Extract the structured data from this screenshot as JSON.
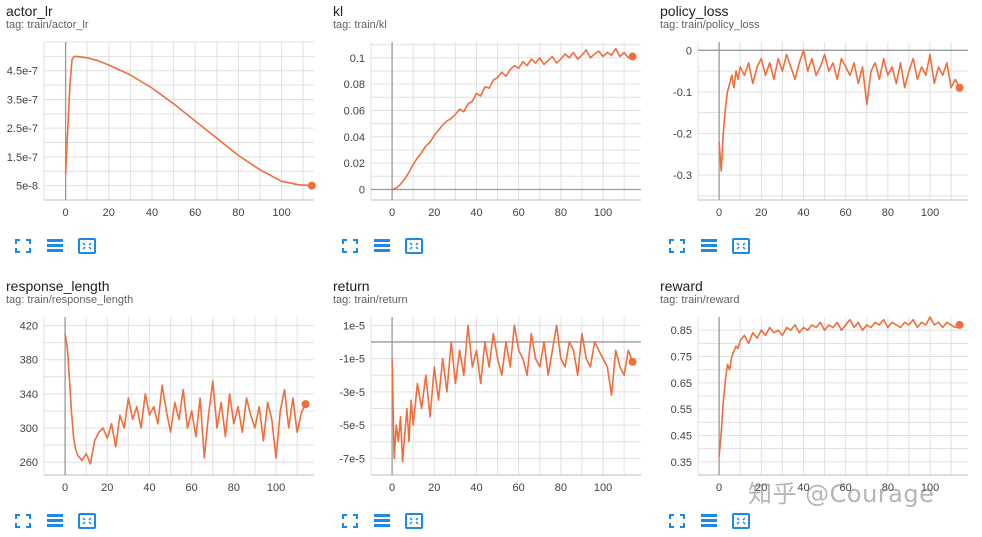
{
  "colors": {
    "series": "#f06d3c",
    "grid": "#e0e0e0",
    "axis": "#9e9e9e",
    "zero_line": "#9a9a9a",
    "icon": "#1e88e5",
    "text": "#212121",
    "tag_text": "#616161"
  },
  "toolbar_icons": [
    "fullscreen-icon",
    "data-table-icon",
    "fit-domain-icon"
  ],
  "watermark": "知乎 @Courage",
  "chart_data": [
    {
      "type": "line",
      "title": "actor_lr",
      "tag": "tag: train/actor_lr",
      "xlim": [
        -10,
        115
      ],
      "ylim": [
        0,
        5.5e-07
      ],
      "xticks": [
        0,
        20,
        40,
        60,
        80,
        100
      ],
      "yticks": [
        5e-08,
        1.5e-07,
        2.5e-07,
        3.5e-07,
        4.5e-07
      ],
      "ytick_labels": [
        "5e-8",
        "1.5e-7",
        "2.5e-7",
        "3.5e-7",
        "4.5e-7"
      ],
      "zero_line_x": true,
      "zero_line_y": false,
      "grid": true,
      "x": [
        0,
        1,
        2,
        3,
        4,
        5,
        10,
        15,
        20,
        30,
        40,
        50,
        60,
        70,
        80,
        90,
        100,
        108,
        114
      ],
      "y": [
        9e-08,
        2.5e-07,
        4e-07,
        4.9e-07,
        5e-07,
        5e-07,
        4.95e-07,
        4.85e-07,
        4.7e-07,
        4.35e-07,
        3.9e-07,
        3.35e-07,
        2.75e-07,
        2.15e-07,
        1.55e-07,
        1.05e-07,
        6.5e-08,
        5.3e-08,
        5e-08
      ]
    },
    {
      "type": "line",
      "title": "kl",
      "tag": "tag: train/kl",
      "xlim": [
        -10,
        118
      ],
      "ylim": [
        -0.008,
        0.112
      ],
      "xticks": [
        0,
        20,
        40,
        60,
        80,
        100
      ],
      "yticks": [
        0,
        0.02,
        0.04,
        0.06,
        0.08,
        0.1
      ],
      "ytick_labels": [
        "0",
        "0.02",
        "0.04",
        "0.06",
        "0.08",
        "0.1"
      ],
      "zero_line_x": true,
      "zero_line_y": true,
      "grid": true,
      "x": [
        0,
        2,
        4,
        6,
        8,
        10,
        12,
        14,
        16,
        18,
        20,
        22,
        24,
        26,
        28,
        30,
        32,
        34,
        36,
        38,
        40,
        42,
        44,
        46,
        48,
        50,
        52,
        54,
        56,
        58,
        60,
        62,
        64,
        66,
        68,
        70,
        72,
        74,
        76,
        78,
        80,
        82,
        84,
        86,
        88,
        90,
        92,
        94,
        96,
        98,
        100,
        102,
        104,
        106,
        108,
        110,
        112,
        114
      ],
      "y": [
        0,
        0.001,
        0.004,
        0.008,
        0.013,
        0.019,
        0.024,
        0.028,
        0.033,
        0.036,
        0.041,
        0.045,
        0.049,
        0.052,
        0.054,
        0.057,
        0.061,
        0.059,
        0.065,
        0.067,
        0.073,
        0.071,
        0.078,
        0.077,
        0.083,
        0.085,
        0.089,
        0.086,
        0.091,
        0.094,
        0.092,
        0.097,
        0.094,
        0.099,
        0.096,
        0.1,
        0.095,
        0.098,
        0.101,
        0.096,
        0.099,
        0.103,
        0.1,
        0.104,
        0.099,
        0.102,
        0.106,
        0.1,
        0.103,
        0.105,
        0.101,
        0.104,
        0.102,
        0.107,
        0.101,
        0.104,
        0.1,
        0.101
      ]
    },
    {
      "type": "line",
      "title": "policy_loss",
      "tag": "tag: train/policy_loss",
      "xlim": [
        -10,
        118
      ],
      "ylim": [
        -0.36,
        0.02
      ],
      "xticks": [
        0,
        20,
        40,
        60,
        80,
        100
      ],
      "yticks": [
        -0.3,
        -0.2,
        -0.1,
        0
      ],
      "ytick_labels": [
        "-0.3",
        "-0.2",
        "-0.1",
        "0"
      ],
      "zero_line_x": true,
      "zero_line_y": true,
      "grid": true,
      "x": [
        0,
        1,
        2,
        3,
        4,
        5,
        6,
        7,
        8,
        9,
        10,
        12,
        14,
        16,
        18,
        20,
        22,
        24,
        26,
        28,
        30,
        32,
        34,
        36,
        38,
        40,
        42,
        44,
        46,
        48,
        50,
        52,
        54,
        56,
        58,
        60,
        62,
        64,
        66,
        68,
        70,
        72,
        74,
        76,
        78,
        80,
        82,
        84,
        86,
        88,
        90,
        92,
        94,
        96,
        98,
        100,
        102,
        104,
        106,
        108,
        110,
        112,
        114
      ],
      "y": [
        -0.22,
        -0.29,
        -0.2,
        -0.14,
        -0.1,
        -0.08,
        -0.06,
        -0.09,
        -0.05,
        -0.07,
        -0.04,
        -0.06,
        -0.03,
        -0.08,
        -0.04,
        -0.02,
        -0.06,
        -0.03,
        -0.07,
        -0.02,
        -0.05,
        -0.01,
        -0.04,
        -0.07,
        -0.03,
        0,
        -0.05,
        -0.02,
        -0.06,
        -0.04,
        -0.01,
        -0.05,
        -0.03,
        -0.07,
        -0.02,
        -0.04,
        -0.06,
        -0.03,
        -0.08,
        -0.04,
        -0.13,
        -0.05,
        -0.03,
        -0.07,
        -0.02,
        -0.06,
        -0.04,
        -0.08,
        -0.03,
        -0.09,
        -0.05,
        -0.02,
        -0.07,
        -0.04,
        -0.06,
        -0.01,
        -0.08,
        -0.04,
        -0.06,
        -0.03,
        -0.09,
        -0.07,
        -0.09
      ]
    },
    {
      "type": "line",
      "title": "response_length",
      "tag": "tag: train/response_length",
      "xlim": [
        -10,
        118
      ],
      "ylim": [
        245,
        430
      ],
      "xticks": [
        0,
        20,
        40,
        60,
        80,
        100
      ],
      "yticks": [
        260,
        300,
        340,
        380,
        420
      ],
      "ytick_labels": [
        "260",
        "300",
        "340",
        "380",
        "420"
      ],
      "zero_line_x": true,
      "zero_line_y": false,
      "grid": true,
      "x": [
        0,
        1,
        2,
        3,
        4,
        5,
        6,
        8,
        10,
        12,
        14,
        16,
        18,
        20,
        22,
        24,
        26,
        28,
        30,
        32,
        34,
        36,
        38,
        40,
        42,
        44,
        46,
        48,
        50,
        52,
        54,
        56,
        58,
        60,
        62,
        64,
        66,
        68,
        70,
        72,
        74,
        76,
        78,
        80,
        82,
        84,
        86,
        88,
        90,
        92,
        94,
        96,
        98,
        100,
        102,
        104,
        106,
        108,
        110,
        112,
        114
      ],
      "y": [
        410,
        395,
        360,
        320,
        290,
        275,
        268,
        262,
        270,
        258,
        285,
        295,
        300,
        288,
        305,
        278,
        315,
        300,
        335,
        310,
        325,
        300,
        340,
        315,
        325,
        305,
        350,
        320,
        295,
        330,
        310,
        345,
        300,
        320,
        290,
        335,
        265,
        315,
        355,
        300,
        330,
        290,
        340,
        305,
        325,
        295,
        335,
        315,
        300,
        325,
        285,
        330,
        310,
        265,
        320,
        345,
        300,
        335,
        295,
        318,
        328
      ]
    },
    {
      "type": "line",
      "title": "return",
      "tag": "tag: train/return",
      "xlim": [
        -10,
        118
      ],
      "ylim": [
        -8e-05,
        1.5e-05
      ],
      "xticks": [
        0,
        20,
        40,
        60,
        80,
        100
      ],
      "yticks": [
        -7e-05,
        -5e-05,
        -3e-05,
        -1e-05,
        1e-05
      ],
      "ytick_labels": [
        "-7e-5",
        "-5e-5",
        "-3e-5",
        "-1e-5",
        "1e-5"
      ],
      "zero_line_x": true,
      "zero_line_y": true,
      "grid": true,
      "x": [
        0,
        1,
        2,
        3,
        4,
        5,
        6,
        7,
        8,
        9,
        10,
        12,
        14,
        16,
        18,
        20,
        22,
        24,
        26,
        28,
        30,
        32,
        34,
        36,
        38,
        40,
        42,
        44,
        46,
        48,
        50,
        52,
        54,
        56,
        58,
        60,
        62,
        64,
        66,
        68,
        70,
        72,
        74,
        76,
        78,
        80,
        82,
        84,
        86,
        88,
        90,
        92,
        94,
        96,
        98,
        100,
        102,
        104,
        106,
        108,
        110,
        112,
        114
      ],
      "y": [
        -1e-05,
        -7e-05,
        -5e-05,
        -6e-05,
        -4.5e-05,
        -7.2e-05,
        -5.5e-05,
        -4e-05,
        -6e-05,
        -3.5e-05,
        -5e-05,
        -2.5e-05,
        -4e-05,
        -2e-05,
        -4.5e-05,
        -1.5e-05,
        -3.5e-05,
        -1e-05,
        -3e-05,
        0,
        -2.5e-05,
        -5e-06,
        -2e-05,
        1e-05,
        -1.5e-05,
        -5e-06,
        -2.5e-05,
        0,
        -1.5e-05,
        5e-06,
        -1e-05,
        -2e-05,
        0,
        -1.5e-05,
        1e-05,
        -5e-06,
        -1e-05,
        -2e-05,
        5e-06,
        -1e-05,
        -1.5e-05,
        0,
        -2e-05,
        -5e-06,
        1e-05,
        -1e-05,
        -1.5e-05,
        0,
        -5e-06,
        -2e-05,
        5e-06,
        -1e-05,
        -1.5e-05,
        0,
        -5e-06,
        -1e-05,
        -1.5e-05,
        -3.2e-05,
        -5e-06,
        -1.5e-05,
        -2e-05,
        -5e-06,
        -1.2e-05
      ]
    },
    {
      "type": "line",
      "title": "reward",
      "tag": "tag: train/reward",
      "xlim": [
        -10,
        118
      ],
      "ylim": [
        0.3,
        0.9
      ],
      "xticks": [
        0,
        20,
        40,
        60,
        80,
        100
      ],
      "yticks": [
        0.35,
        0.45,
        0.55,
        0.65,
        0.75,
        0.85
      ],
      "ytick_labels": [
        "0.35",
        "0.45",
        "0.55",
        "0.65",
        "0.75",
        "0.85"
      ],
      "zero_line_x": true,
      "zero_line_y": false,
      "grid": true,
      "x": [
        0,
        1,
        2,
        3,
        4,
        5,
        6,
        7,
        8,
        9,
        10,
        12,
        14,
        16,
        18,
        20,
        22,
        24,
        26,
        28,
        30,
        32,
        34,
        36,
        38,
        40,
        42,
        44,
        46,
        48,
        50,
        52,
        54,
        56,
        58,
        60,
        62,
        64,
        66,
        68,
        70,
        72,
        74,
        76,
        78,
        80,
        82,
        84,
        86,
        88,
        90,
        92,
        94,
        96,
        98,
        100,
        102,
        104,
        106,
        108,
        110,
        112,
        114
      ],
      "y": [
        0.37,
        0.46,
        0.58,
        0.66,
        0.72,
        0.7,
        0.75,
        0.77,
        0.79,
        0.78,
        0.81,
        0.83,
        0.8,
        0.84,
        0.82,
        0.85,
        0.83,
        0.86,
        0.84,
        0.85,
        0.83,
        0.86,
        0.85,
        0.87,
        0.84,
        0.86,
        0.85,
        0.87,
        0.86,
        0.88,
        0.85,
        0.87,
        0.86,
        0.88,
        0.85,
        0.87,
        0.89,
        0.86,
        0.88,
        0.85,
        0.87,
        0.86,
        0.88,
        0.87,
        0.89,
        0.86,
        0.88,
        0.87,
        0.86,
        0.88,
        0.87,
        0.89,
        0.86,
        0.88,
        0.87,
        0.9,
        0.87,
        0.88,
        0.86,
        0.88,
        0.87,
        0.86,
        0.87
      ]
    }
  ]
}
